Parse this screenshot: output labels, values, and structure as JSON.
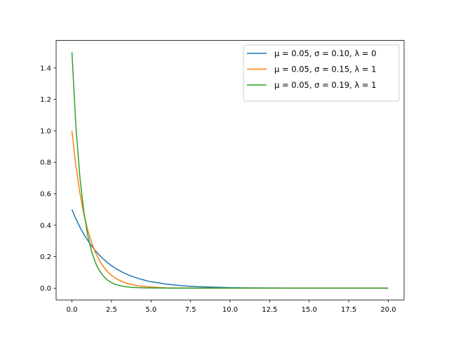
{
  "chart_data": {
    "type": "line",
    "title": "",
    "xlabel": "",
    "ylabel": "",
    "xlim": [
      -1,
      21
    ],
    "ylim": [
      -0.075,
      1.575
    ],
    "grid": false,
    "legend_position": "top-right",
    "x_ticks": [
      "0.0",
      "2.5",
      "5.0",
      "7.5",
      "10.0",
      "12.5",
      "15.0",
      "17.5",
      "20.0"
    ],
    "y_ticks": [
      "0.0",
      "0.2",
      "0.4",
      "0.6",
      "0.8",
      "1.0",
      "1.2",
      "1.4"
    ],
    "x": [
      0,
      0.25,
      0.5,
      0.75,
      1,
      1.25,
      1.5,
      1.75,
      2,
      2.25,
      2.5,
      2.75,
      3,
      3.25,
      3.5,
      3.75,
      4,
      4.25,
      4.5,
      4.75,
      5,
      6,
      7,
      8,
      9,
      10,
      11,
      12,
      13,
      14,
      15,
      16,
      17,
      18,
      19,
      20
    ],
    "series": [
      {
        "name": "μ = 0.05,  σ = 0.10,  λ = 0",
        "color": "#1f77b4",
        "values": [
          0.5,
          0.441,
          0.389,
          0.344,
          0.303,
          0.268,
          0.236,
          0.208,
          0.184,
          0.162,
          0.143,
          0.126,
          0.112,
          0.098,
          0.087,
          0.077,
          0.068,
          0.06,
          0.053,
          0.046,
          0.041,
          0.025,
          0.015,
          0.009,
          0.006,
          0.003,
          0.002,
          0.001,
          0.001,
          0.0,
          0.0,
          0.0,
          0.0,
          0.0,
          0.0,
          0.0
        ]
      },
      {
        "name": "μ = 0.05,  σ = 0.15,  λ = 1",
        "color": "#ff7f0e",
        "values": [
          1.0,
          0.779,
          0.607,
          0.472,
          0.368,
          0.287,
          0.223,
          0.174,
          0.135,
          0.105,
          0.082,
          0.064,
          0.05,
          0.039,
          0.03,
          0.024,
          0.018,
          0.014,
          0.011,
          0.009,
          0.007,
          0.002,
          0.001,
          0.0,
          0.0,
          0.0,
          0.0,
          0.0,
          0.0,
          0.0,
          0.0,
          0.0,
          0.0,
          0.0,
          0.0,
          0.0
        ]
      },
      {
        "name": "μ = 0.05,  σ = 0.19,  λ = 1",
        "color": "#2ca02c",
        "values": [
          1.5,
          1.031,
          0.709,
          0.487,
          0.335,
          0.23,
          0.158,
          0.109,
          0.075,
          0.051,
          0.035,
          0.024,
          0.017,
          0.011,
          0.008,
          0.005,
          0.004,
          0.003,
          0.002,
          0.001,
          0.001,
          0.0,
          0.0,
          0.0,
          0.0,
          0.0,
          0.0,
          0.0,
          0.0,
          0.0,
          0.0,
          0.0,
          0.0,
          0.0,
          0.0,
          0.0
        ]
      }
    ]
  }
}
